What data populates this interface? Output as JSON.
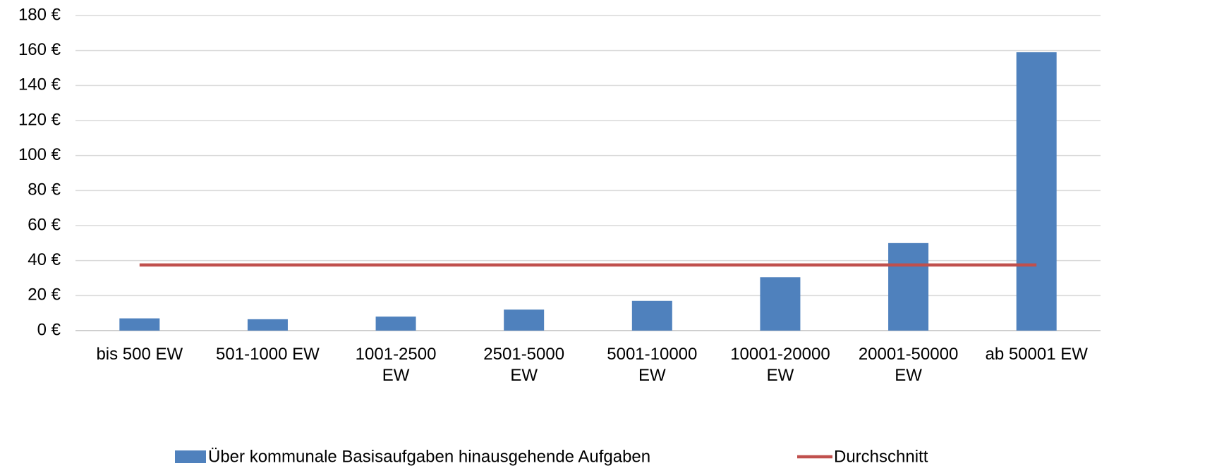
{
  "chart_data": {
    "type": "bar",
    "categories": [
      "bis 500 EW",
      "501-1000 EW",
      "1001-2500 EW",
      "2501-5000 EW",
      "5001-10000 EW",
      "10001-20000 EW",
      "20001-50000 EW",
      "ab 50001 EW"
    ],
    "series": [
      {
        "name": "Über kommunale Basisaufgaben hinausgehende Aufgaben",
        "type": "bar",
        "color": "#4f81bd",
        "values": [
          7,
          6.5,
          8,
          12,
          17,
          30.5,
          50,
          159
        ]
      },
      {
        "name": "Durchschnitt",
        "type": "line",
        "color": "#c0504d",
        "values": [
          37.5,
          37.5,
          37.5,
          37.5,
          37.5,
          37.5,
          37.5,
          37.5
        ]
      }
    ],
    "ylim": [
      0,
      180
    ],
    "yticks": [
      {
        "value": 0,
        "label": "0 €"
      },
      {
        "value": 20,
        "label": "20 €"
      },
      {
        "value": 40,
        "label": "40 €"
      },
      {
        "value": 60,
        "label": "60 €"
      },
      {
        "value": 80,
        "label": "80 €"
      },
      {
        "value": 100,
        "label": "100 €"
      },
      {
        "value": 120,
        "label": "120 €"
      },
      {
        "value": 140,
        "label": "140 €"
      },
      {
        "value": 160,
        "label": "160 €"
      },
      {
        "value": 180,
        "label": "180 €"
      }
    ],
    "grid": true,
    "legend": "bottom"
  }
}
